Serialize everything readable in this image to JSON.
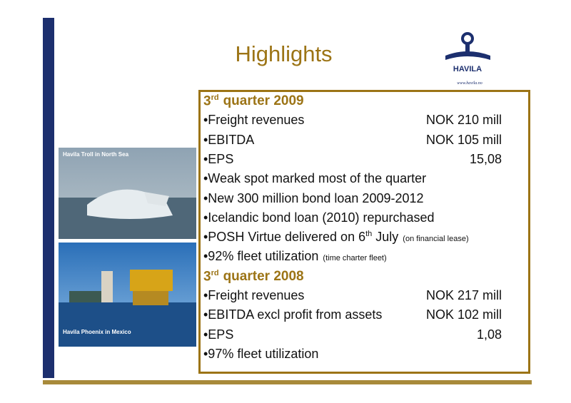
{
  "header": {
    "title": "Highlights",
    "logo": {
      "name": "HAVILA",
      "url": "www.havila.no"
    }
  },
  "photos": [
    {
      "caption": "Havila Troll in North Sea"
    },
    {
      "caption": "Havila Phoenix in Mexico"
    }
  ],
  "sections": [
    {
      "heading": {
        "number": "3",
        "suffix": "rd",
        "text": "quarter 2009"
      },
      "items": [
        {
          "label": "•Freight revenues",
          "value": "NOK 210 mill"
        },
        {
          "label": "•EBITDA",
          "value": "NOK 105 mill"
        },
        {
          "label": "•EPS",
          "value": "15,08"
        },
        {
          "label": "•Weak spot marked most of the quarter"
        },
        {
          "label": "•New 300 million bond loan 2009-2012"
        },
        {
          "label": "•Icelandic bond loan (2010) repurchased"
        },
        {
          "label": "•POSH Virtue delivered on 6",
          "sup": "th",
          "after": "July",
          "note": "(on financial lease)"
        },
        {
          "label": "•92% fleet utilization",
          "note": "(time charter fleet)"
        }
      ]
    },
    {
      "heading": {
        "number": "3",
        "suffix": "rd",
        "text": "quarter 2008"
      },
      "items": [
        {
          "label": "•Freight revenues",
          "value": "NOK 217 mill"
        },
        {
          "label": "•EBITDA excl profit from assets",
          "value": "NOK 102 mill"
        },
        {
          "label": "•EPS",
          "value": "1,08"
        },
        {
          "label": "•97% fleet utilization"
        }
      ]
    }
  ]
}
